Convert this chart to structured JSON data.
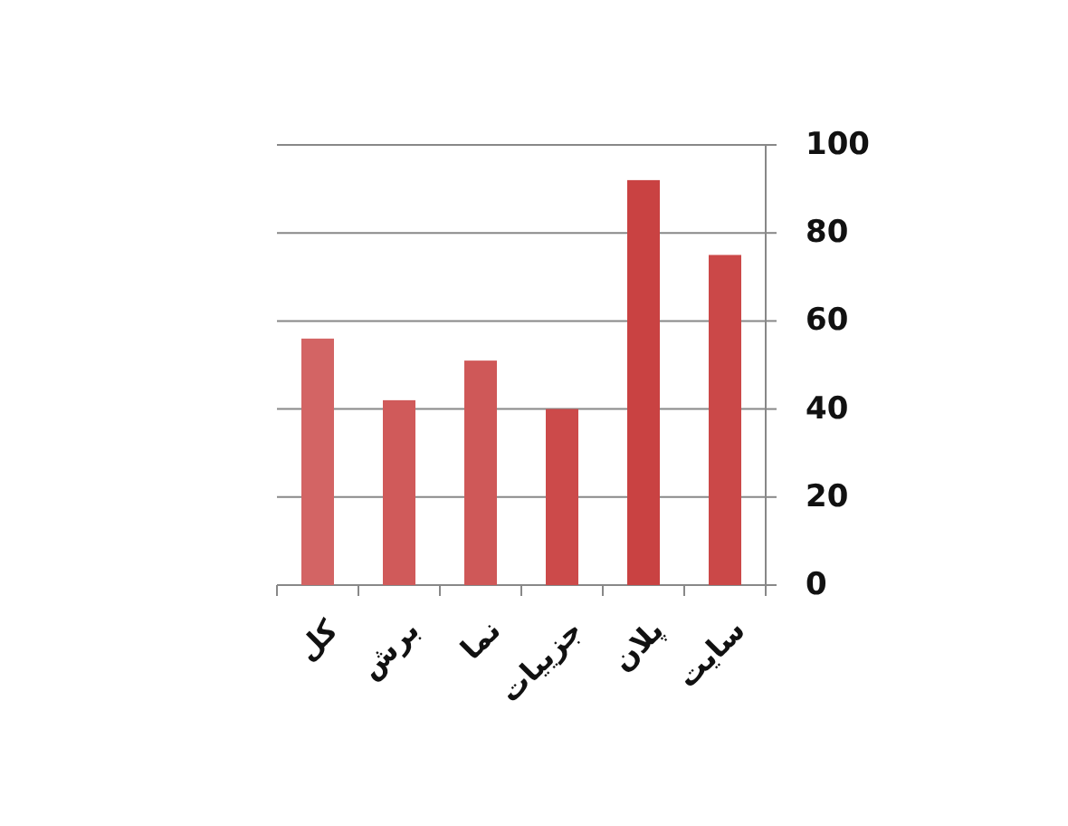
{
  "chart_data": {
    "type": "bar",
    "categories": [
      "کل",
      "برش",
      "نما",
      "جزییات",
      "پلان",
      "سایت"
    ],
    "values": [
      56,
      42,
      51,
      40,
      92,
      75
    ],
    "colors": [
      "#d36464",
      "#d05a5a",
      "#cf5858",
      "#cc4a4a",
      "#c94242",
      "#cb4848"
    ],
    "ylim": [
      0,
      100
    ],
    "yticks": [
      0,
      20,
      40,
      60,
      80,
      100
    ],
    "grid": "y"
  }
}
